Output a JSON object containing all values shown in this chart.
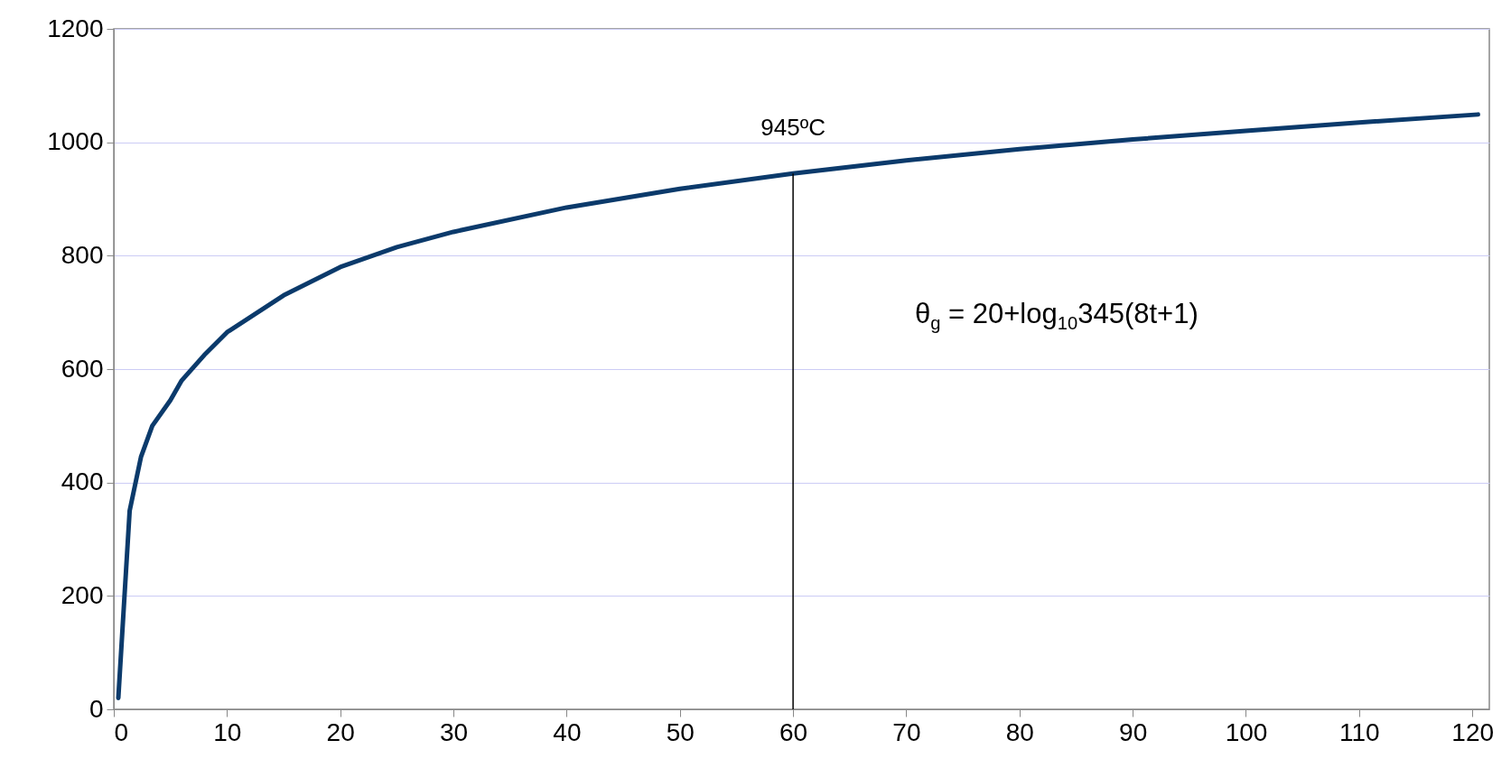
{
  "chart_data": {
    "type": "line",
    "x": [
      0.4,
      1.4,
      2.4,
      3.4,
      5,
      6,
      8,
      10,
      15,
      20,
      25,
      30,
      40,
      50,
      60,
      70,
      80,
      90,
      100,
      110,
      120.5
    ],
    "series": [
      {
        "color": "#0b3a6b",
        "values": [
          20,
          350,
          445,
          500,
          545,
          580,
          625,
          665,
          730,
          780,
          815,
          842,
          885,
          918,
          945,
          968,
          988,
          1005,
          1020,
          1035,
          1049
        ]
      }
    ],
    "xlim": [
      0,
      121.5
    ],
    "xticks": [
      0,
      10,
      20,
      30,
      40,
      50,
      60,
      70,
      80,
      90,
      100,
      110,
      120
    ],
    "ylim": [
      0,
      1200
    ],
    "yticks": [
      0,
      200,
      400,
      600,
      800,
      1000,
      1200
    ],
    "grid": "y",
    "marker": "none",
    "line_style": "solid",
    "ref_lines": [
      {
        "axis": "x",
        "value": 60,
        "label": "945ºC",
        "color": "#000000"
      }
    ],
    "annotations": [
      "θ$_{g}$ = 20+log$_{10}$345(8t+1)"
    ]
  }
}
